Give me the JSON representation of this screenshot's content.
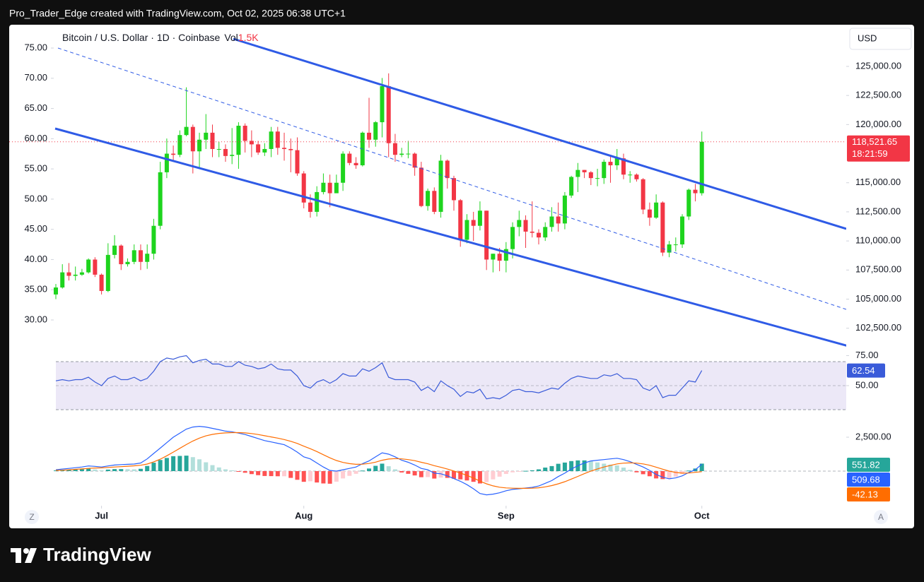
{
  "header": "Pro_Trader_Edge created with TradingView.com, Oct 02, 2025 06:38 UTC+1",
  "brand": "TradingView",
  "chart_data": [
    {
      "type": "candlestick",
      "title": "Bitcoin / U.S. Dollar · 1D · Coinbase",
      "volume_label": "Vol",
      "volume_value": "1.5K",
      "currency": "USD",
      "scale_buttons": [
        "Z",
        "A"
      ],
      "up_color": "#1ed41e",
      "down_color": "#f23645",
      "open": [
        105400,
        106000,
        107300,
        107000,
        107100,
        107300,
        108400,
        107100,
        105700,
        108800,
        109600,
        108000,
        108200,
        109200,
        108200,
        108900,
        111300,
        115900,
        117500,
        117400,
        119100,
        119800,
        117700,
        118700,
        119300,
        117900,
        117900,
        117300,
        117400,
        119900,
        118600,
        118300,
        117600,
        117900,
        119400,
        118000,
        117900,
        117800,
        115800,
        113300,
        112500,
        114200,
        115000,
        114100,
        115000,
        117500,
        116700,
        116500,
        119300,
        118700,
        120200,
        123300,
        118400,
        117400,
        117500,
        117500,
        116300,
        113000,
        114300,
        112500,
        116900,
        115400,
        113500,
        110100,
        111800,
        111300,
        112600,
        108400,
        108900,
        108300,
        109300,
        111200,
        111800,
        110800,
        110700,
        110300,
        111200,
        112100,
        111500,
        113900,
        115500,
        116100,
        115900,
        115400,
        115400,
        116800,
        116500,
        117100,
        115700,
        115700,
        115300,
        112700,
        112000,
        113300,
        109000,
        109700,
        109700,
        112100,
        114400,
        114100
      ],
      "high": [
        106300,
        108000,
        108100,
        107800,
        107600,
        108500,
        108600,
        107200,
        109800,
        110500,
        109700,
        108500,
        109700,
        109700,
        109700,
        111900,
        116800,
        118800,
        118200,
        119500,
        123200,
        120000,
        119300,
        120900,
        120000,
        118500,
        118300,
        119700,
        120200,
        120100,
        119500,
        118600,
        118400,
        119800,
        119800,
        119300,
        118800,
        118900,
        116000,
        114000,
        114700,
        115800,
        115700,
        115700,
        117700,
        117700,
        117200,
        119400,
        122300,
        120300,
        124000,
        124400,
        119200,
        118000,
        118600,
        117600,
        116800,
        114500,
        114600,
        117400,
        117000,
        115600,
        113600,
        112300,
        112500,
        113400,
        112600,
        108900,
        109400,
        109900,
        111600,
        112600,
        112200,
        113400,
        111000,
        111600,
        112900,
        113300,
        114200,
        115600,
        116700,
        116100,
        116000,
        116200,
        117000,
        117300,
        117900,
        117500,
        116000,
        115800,
        115400,
        113300,
        114000,
        113400,
        110000,
        110300,
        112300,
        114500,
        114900,
        119400
      ],
      "low": [
        105000,
        105900,
        106600,
        106600,
        107000,
        107200,
        106900,
        105400,
        105600,
        108500,
        107500,
        107800,
        108000,
        107500,
        107600,
        108400,
        111000,
        115400,
        116800,
        117200,
        119000,
        115800,
        116300,
        117900,
        117200,
        117200,
        116800,
        116600,
        116200,
        117600,
        117200,
        117400,
        117300,
        117200,
        117400,
        116900,
        115900,
        115600,
        112800,
        112000,
        112100,
        114000,
        112900,
        114100,
        114300,
        116500,
        116200,
        116400,
        118000,
        118100,
        118900,
        117200,
        116800,
        117200,
        117100,
        115600,
        112900,
        112600,
        112300,
        112000,
        114500,
        112600,
        109500,
        109800,
        110000,
        110900,
        107500,
        107300,
        107400,
        107300,
        108500,
        110400,
        109400,
        110300,
        109700,
        110000,
        110800,
        110800,
        111000,
        113700,
        114200,
        115400,
        114800,
        114700,
        114900,
        115000,
        116100,
        115300,
        115000,
        115100,
        112300,
        111300,
        111900,
        108700,
        108600,
        109100,
        109400,
        111800,
        113400,
        113900
      ],
      "close": [
        106000,
        107300,
        107000,
        107100,
        107300,
        108400,
        107100,
        105700,
        108800,
        109600,
        108000,
        108200,
        109200,
        108200,
        108900,
        111300,
        115900,
        117500,
        117400,
        119100,
        119800,
        117700,
        118700,
        119300,
        117900,
        117900,
        117300,
        117400,
        119900,
        118600,
        118300,
        117600,
        117900,
        119400,
        118000,
        117900,
        117800,
        115800,
        113300,
        112500,
        114200,
        115000,
        114100,
        115000,
        117500,
        116700,
        116500,
        119300,
        118700,
        120200,
        123300,
        118400,
        117400,
        117500,
        117500,
        116300,
        113000,
        114300,
        112500,
        116900,
        115400,
        113500,
        110100,
        111800,
        111300,
        112600,
        108400,
        108900,
        108300,
        109300,
        111200,
        111800,
        110800,
        110700,
        110300,
        111200,
        112100,
        111500,
        113900,
        115500,
        116100,
        115900,
        115400,
        115400,
        116800,
        116500,
        117100,
        115700,
        115700,
        115300,
        112700,
        112000,
        113300,
        109000,
        109700,
        109700,
        112100,
        114400,
        114100,
        118521.65
      ],
      "last_label": "118,521.65",
      "countdown": "18:21:59",
      "xlim": [
        -7.15,
        121.13
      ],
      "xticks": [
        {
          "value": 7,
          "label": "Jul"
        },
        {
          "value": 38,
          "label": "Aug"
        },
        {
          "value": 69,
          "label": "Sep"
        },
        {
          "value": 99,
          "label": "Oct"
        }
      ],
      "ylim": [
        100660,
        128580
      ],
      "yticks": [
        {
          "value": 102500,
          "label": "102,500.00"
        },
        {
          "value": 105000,
          "label": "105,000.00"
        },
        {
          "value": 107500,
          "label": "107,500.00"
        },
        {
          "value": 110000,
          "label": "110,000.00"
        },
        {
          "value": 112500,
          "label": "112,500.00"
        },
        {
          "value": 115000,
          "label": "115,000.00"
        },
        {
          "value": 120000,
          "label": "120,000.00"
        },
        {
          "value": 122500,
          "label": "122,500.00"
        },
        {
          "value": 125000,
          "label": "125,000.00"
        }
      ],
      "left_ylim": [
        25.09,
        78.86
      ],
      "left_yticks": [
        {
          "value": 30,
          "label": "30.00"
        },
        {
          "value": 35,
          "label": "35.00"
        },
        {
          "value": 40,
          "label": "40.00"
        },
        {
          "value": 45,
          "label": "45.00"
        },
        {
          "value": 50,
          "label": "50.00"
        },
        {
          "value": 55,
          "label": "55.00"
        },
        {
          "value": 60,
          "label": "60.00"
        },
        {
          "value": 65,
          "label": "65.00"
        },
        {
          "value": 70,
          "label": "70.00"
        },
        {
          "value": 75,
          "label": "75.00"
        }
      ]
    },
    {
      "type": "line",
      "color": "#3a5bd9",
      "values": [
        54,
        55,
        54,
        55,
        55,
        57,
        53,
        50,
        56,
        58,
        55,
        55,
        57,
        54,
        56,
        62,
        70,
        73,
        72,
        74,
        75,
        69,
        71,
        72,
        68,
        68,
        66,
        66,
        70,
        67,
        66,
        64,
        65,
        68,
        64,
        63,
        63,
        58,
        50,
        48,
        53,
        55,
        52,
        55,
        60,
        58,
        58,
        64,
        62,
        65,
        69,
        57,
        55,
        55,
        55,
        53,
        46,
        49,
        45,
        54,
        50,
        47,
        41,
        45,
        44,
        47,
        39,
        40,
        39,
        42,
        46,
        47,
        45,
        45,
        44,
        46,
        48,
        47,
        52,
        56,
        58,
        57,
        56,
        56,
        59,
        58,
        60,
        56,
        56,
        55,
        48,
        46,
        50,
        40,
        42,
        42,
        48,
        54,
        53,
        62.54
      ],
      "ylim": [
        24.1,
        78.8
      ],
      "yticks": [
        {
          "value": 75,
          "label": "75.00"
        },
        {
          "value": 50,
          "label": "50.00"
        }
      ],
      "band": [
        30,
        70
      ],
      "band_color": "#ece8f7"
    },
    {
      "type": "macd",
      "series": [
        {
          "color": "#2962ff",
          "values": [
            100,
            150,
            200,
            250,
            300,
            380,
            350,
            300,
            380,
            450,
            480,
            500,
            520,
            600,
            900,
            1300,
            1700,
            2100,
            2500,
            2800,
            3100,
            3250,
            3300,
            3250,
            3150,
            3050,
            2950,
            2900,
            2800,
            2700,
            2550,
            2400,
            2250,
            2150,
            2050,
            1950,
            1700,
            1400,
            1050,
            900,
            600,
            300,
            50,
            0,
            100,
            200,
            300,
            550,
            750,
            1050,
            1350,
            1250,
            1050,
            800,
            650,
            450,
            200,
            100,
            -150,
            -200,
            -350,
            -550,
            -750,
            -1000,
            -1300,
            -1650,
            -1750,
            -1700,
            -1600,
            -1450,
            -1350,
            -1300,
            -1250,
            -1200,
            -1100,
            -900,
            -700,
            -400,
            -150,
            150,
            400,
            600,
            750,
            800,
            850,
            900,
            950,
            850,
            700,
            500,
            300,
            50,
            -250,
            -450,
            -570,
            -500,
            -350,
            -100,
            100,
            509.68
          ]
        },
        {
          "color": "#ff6d00",
          "values": [
            50,
            70,
            100,
            130,
            160,
            200,
            230,
            240,
            270,
            300,
            330,
            360,
            390,
            430,
            520,
            680,
            880,
            1130,
            1400,
            1680,
            1960,
            2220,
            2430,
            2600,
            2710,
            2780,
            2820,
            2840,
            2840,
            2820,
            2770,
            2700,
            2610,
            2520,
            2430,
            2330,
            2200,
            2040,
            1840,
            1650,
            1440,
            1210,
            980,
            780,
            640,
            550,
            500,
            510,
            560,
            660,
            800,
            890,
            920,
            900,
            850,
            770,
            650,
            540,
            400,
            280,
            150,
            10,
            -140,
            -310,
            -510,
            -740,
            -940,
            -1090,
            -1190,
            -1240,
            -1260,
            -1270,
            -1270,
            -1260,
            -1230,
            -1160,
            -1070,
            -940,
            -780,
            -590,
            -390,
            -190,
            0,
            160,
            300,
            420,
            530,
            590,
            610,
            590,
            530,
            430,
            290,
            140,
            0,
            -100,
            -150,
            -140,
            -90,
            -42.13
          ]
        }
      ],
      "histogram": {
        "colors": [
          "#26a69a",
          "#b2dfdb",
          "#ff5252",
          "#ffcdd2"
        ],
        "values": [
          50,
          80,
          100,
          120,
          140,
          180,
          120,
          60,
          110,
          150,
          150,
          140,
          130,
          170,
          380,
          620,
          820,
          970,
          1100,
          1120,
          1140,
          1030,
          870,
          650,
          440,
          270,
          130,
          60,
          -40,
          -120,
          -220,
          -300,
          -360,
          -370,
          -380,
          -380,
          -500,
          -640,
          -790,
          -750,
          -840,
          -910,
          -930,
          -780,
          -540,
          -350,
          -200,
          40,
          190,
          390,
          550,
          360,
          130,
          -100,
          -200,
          -320,
          -450,
          -440,
          -550,
          -480,
          -500,
          -560,
          -610,
          -690,
          -790,
          -910,
          -810,
          -610,
          -410,
          -210,
          -90,
          -30,
          20,
          60,
          130,
          260,
          370,
          540,
          630,
          740,
          790,
          790,
          750,
          640,
          550,
          480,
          420,
          260,
          90,
          -90,
          -230,
          -380,
          -540,
          -590,
          -570,
          -400,
          -200,
          40,
          190,
          551.82
        ]
      },
      "ylim": [
        -2500,
        3906
      ],
      "yticks": [
        {
          "value": 2500,
          "label": "2,500.00"
        }
      ]
    }
  ]
}
